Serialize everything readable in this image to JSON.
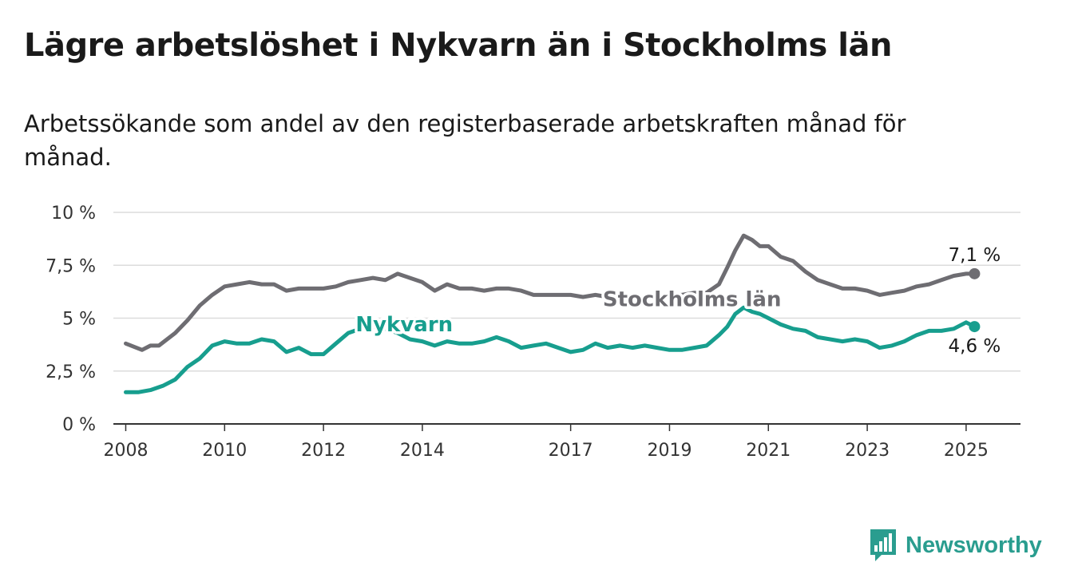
{
  "title": "Lägre arbetslöshet i Nykvarn än i Stockholms län",
  "subtitle": "Arbetssökande som andel av den registerbaserade arbetskraften månad för månad.",
  "brand": {
    "name": "Newsworthy",
    "color": "#2a9d8f",
    "icon": "newsworthy-logo-icon"
  },
  "chart_data": {
    "type": "line",
    "ylim": [
      0,
      10
    ],
    "y_ticks": [
      {
        "value": 0,
        "label": "0 %"
      },
      {
        "value": 2.5,
        "label": "2,5 %"
      },
      {
        "value": 5,
        "label": "5 %"
      },
      {
        "value": 7.5,
        "label": "7,5 %"
      },
      {
        "value": 10,
        "label": "10 %"
      }
    ],
    "xlim": [
      2007.75,
      2026.1
    ],
    "x_ticks": [
      {
        "value": 2008,
        "label": "2008"
      },
      {
        "value": 2010,
        "label": "2010"
      },
      {
        "value": 2012,
        "label": "2012"
      },
      {
        "value": 2014,
        "label": "2014"
      },
      {
        "value": 2017,
        "label": "2017"
      },
      {
        "value": 2019,
        "label": "2019"
      },
      {
        "value": 2021,
        "label": "2021"
      },
      {
        "value": 2023,
        "label": "2023"
      },
      {
        "value": 2025,
        "label": "2025"
      }
    ],
    "grid": true,
    "series": [
      {
        "name": "Stockholms län",
        "color": "#6e6d72",
        "end_label": "7,1 %",
        "x": [
          2008.0,
          2008.33,
          2008.5,
          2008.67,
          2009.0,
          2009.25,
          2009.5,
          2009.75,
          2010.0,
          2010.25,
          2010.5,
          2010.75,
          2011.0,
          2011.25,
          2011.5,
          2011.75,
          2012.0,
          2012.25,
          2012.5,
          2012.75,
          2013.0,
          2013.25,
          2013.5,
          2013.75,
          2014.0,
          2014.25,
          2014.5,
          2014.75,
          2015.0,
          2015.25,
          2015.5,
          2015.75,
          2016.0,
          2016.25,
          2016.5,
          2016.75,
          2017.0,
          2017.25,
          2017.5,
          2017.75,
          2018.0,
          2018.25,
          2018.5,
          2018.75,
          2019.0,
          2019.25,
          2019.5,
          2019.75,
          2020.0,
          2020.17,
          2020.33,
          2020.5,
          2020.67,
          2020.83,
          2021.0,
          2021.25,
          2021.5,
          2021.75,
          2022.0,
          2022.25,
          2022.5,
          2022.75,
          2023.0,
          2023.25,
          2023.5,
          2023.75,
          2024.0,
          2024.25,
          2024.5,
          2024.75,
          2025.0,
          2025.17
        ],
        "y": [
          3.8,
          3.5,
          3.7,
          3.7,
          4.3,
          4.9,
          5.6,
          6.1,
          6.5,
          6.6,
          6.7,
          6.6,
          6.6,
          6.3,
          6.4,
          6.4,
          6.4,
          6.5,
          6.7,
          6.8,
          6.9,
          6.8,
          7.1,
          6.9,
          6.7,
          6.3,
          6.6,
          6.4,
          6.4,
          6.3,
          6.4,
          6.4,
          6.3,
          6.1,
          6.1,
          6.1,
          6.1,
          6.0,
          6.1,
          6.0,
          6.0,
          6.0,
          6.0,
          6.0,
          6.1,
          6.1,
          6.2,
          6.2,
          6.6,
          7.4,
          8.2,
          8.9,
          8.7,
          8.4,
          8.4,
          7.9,
          7.7,
          7.2,
          6.8,
          6.6,
          6.4,
          6.4,
          6.3,
          6.1,
          6.2,
          6.3,
          6.5,
          6.6,
          6.8,
          7.0,
          7.1,
          7.1
        ]
      },
      {
        "name": "Nykvarn",
        "color": "#179e8e",
        "end_label": "4,6 %",
        "x": [
          2008.0,
          2008.25,
          2008.5,
          2008.75,
          2009.0,
          2009.25,
          2009.5,
          2009.75,
          2010.0,
          2010.25,
          2010.5,
          2010.75,
          2011.0,
          2011.25,
          2011.5,
          2011.75,
          2012.0,
          2012.25,
          2012.5,
          2012.75,
          2013.0,
          2013.25,
          2013.5,
          2013.75,
          2014.0,
          2014.25,
          2014.5,
          2014.75,
          2015.0,
          2015.25,
          2015.5,
          2015.75,
          2016.0,
          2016.25,
          2016.5,
          2016.75,
          2017.0,
          2017.25,
          2017.5,
          2017.75,
          2018.0,
          2018.25,
          2018.5,
          2018.75,
          2019.0,
          2019.25,
          2019.5,
          2019.75,
          2020.0,
          2020.17,
          2020.33,
          2020.5,
          2020.67,
          2020.83,
          2021.0,
          2021.25,
          2021.5,
          2021.75,
          2022.0,
          2022.25,
          2022.5,
          2022.75,
          2023.0,
          2023.25,
          2023.5,
          2023.75,
          2024.0,
          2024.25,
          2024.5,
          2024.75,
          2025.0,
          2025.17
        ],
        "y": [
          1.5,
          1.5,
          1.6,
          1.8,
          2.1,
          2.7,
          3.1,
          3.7,
          3.9,
          3.8,
          3.8,
          4.0,
          3.9,
          3.4,
          3.6,
          3.3,
          3.3,
          3.8,
          4.3,
          4.5,
          4.6,
          4.5,
          4.3,
          4.0,
          3.9,
          3.7,
          3.9,
          3.8,
          3.8,
          3.9,
          4.1,
          3.9,
          3.6,
          3.7,
          3.8,
          3.6,
          3.4,
          3.5,
          3.8,
          3.6,
          3.7,
          3.6,
          3.7,
          3.6,
          3.5,
          3.5,
          3.6,
          3.7,
          4.2,
          4.6,
          5.2,
          5.5,
          5.3,
          5.2,
          5.0,
          4.7,
          4.5,
          4.4,
          4.1,
          4.0,
          3.9,
          4.0,
          3.9,
          3.6,
          3.7,
          3.9,
          4.2,
          4.4,
          4.4,
          4.5,
          4.8,
          4.6
        ]
      }
    ]
  }
}
